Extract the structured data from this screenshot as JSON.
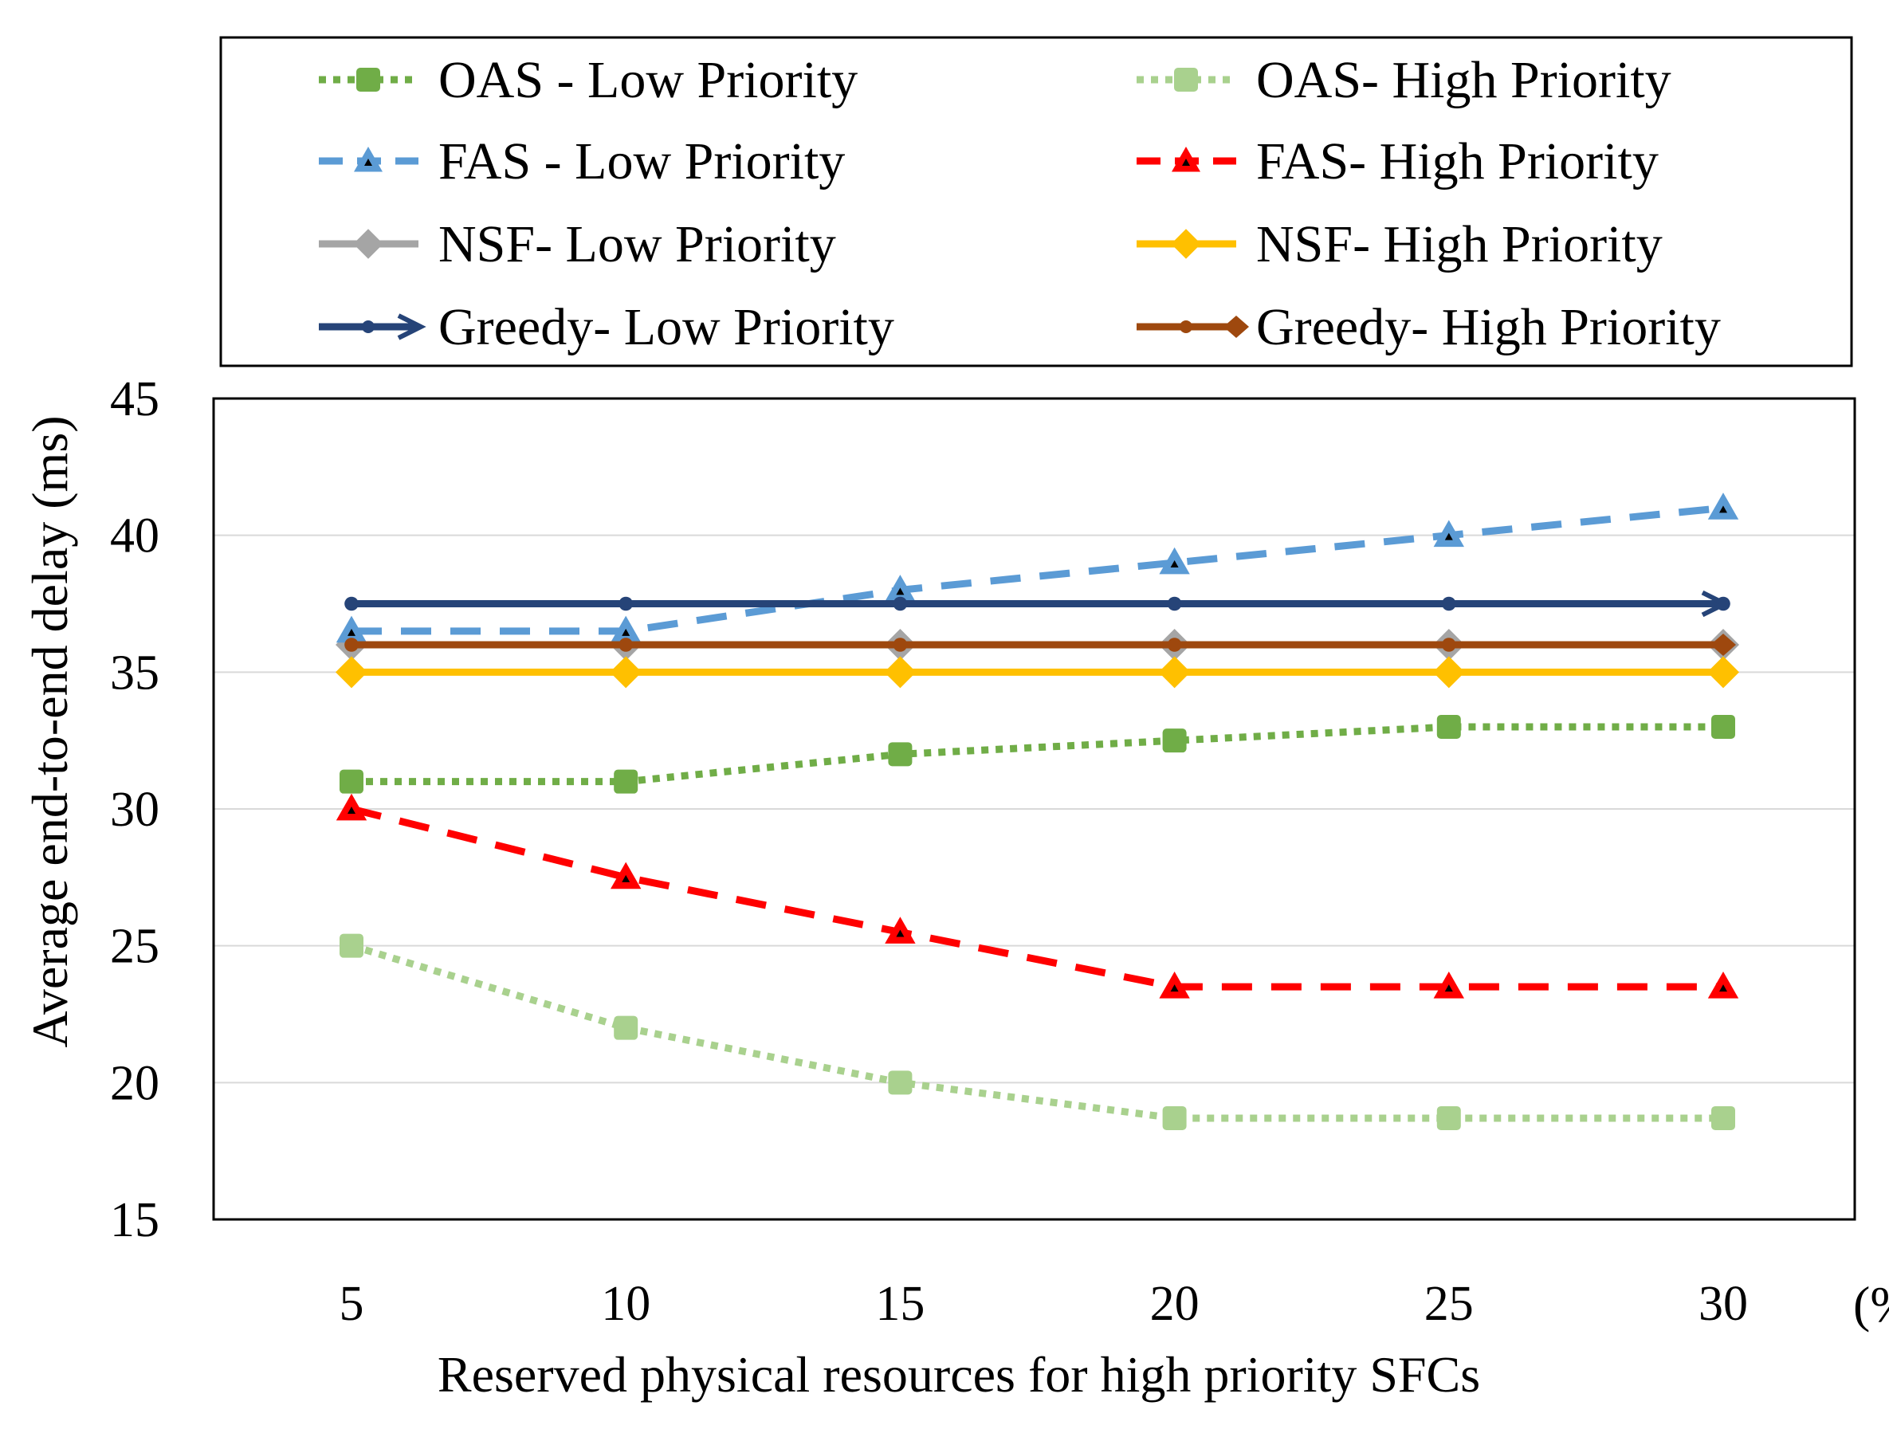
{
  "chart_data": {
    "type": "line",
    "title": "",
    "xlabel": "Reserved physical resources for high priority SFCs",
    "x_unit": "(%)",
    "ylabel": "Average end-to-end delay (ms)",
    "ylim": [
      15,
      45
    ],
    "yticks": [
      15,
      20,
      25,
      30,
      35,
      40,
      45
    ],
    "categories": [
      "5",
      "10",
      "15",
      "20",
      "25",
      "30"
    ],
    "grid": true,
    "legend_position": "top",
    "series": [
      {
        "name": "OAS - Low Priority",
        "color": "#70AD47",
        "dash": "dotted",
        "marker": "square",
        "values": [
          31,
          31,
          32,
          32.5,
          33,
          33
        ]
      },
      {
        "name": "OAS- High Priority",
        "color": "#A9D18E",
        "dash": "dotted",
        "marker": "square",
        "values": [
          25,
          22,
          20,
          18.7,
          18.7,
          18.7
        ]
      },
      {
        "name": "FAS - Low Priority",
        "color": "#5B9BD5",
        "dash": "dashed",
        "marker": "triangle",
        "values": [
          36.5,
          36.5,
          38,
          39,
          40,
          41
        ]
      },
      {
        "name": "FAS- High Priority",
        "color": "#FF0000",
        "dash": "dashed",
        "marker": "triangle",
        "values": [
          30,
          27.5,
          25.5,
          23.5,
          23.5,
          23.5
        ]
      },
      {
        "name": "NSF- Low Priority",
        "color": "#A5A5A5",
        "dash": "solid",
        "marker": "diamond",
        "values": [
          36,
          36,
          36,
          36,
          36,
          36
        ]
      },
      {
        "name": "NSF- High Priority",
        "color": "#FFC000",
        "dash": "solid",
        "marker": "diamond",
        "values": [
          35,
          35,
          35,
          35,
          35,
          35
        ]
      },
      {
        "name": "Greedy- Low Priority",
        "color": "#264478",
        "dash": "solid",
        "marker": "dot-arrow",
        "values": [
          37.5,
          37.5,
          37.5,
          37.5,
          37.5,
          37.5
        ]
      },
      {
        "name": "Greedy- High Priority",
        "color": "#9E480E",
        "dash": "solid",
        "marker": "dot-diamond",
        "values": [
          36,
          36,
          36,
          36,
          36,
          36
        ]
      }
    ]
  }
}
